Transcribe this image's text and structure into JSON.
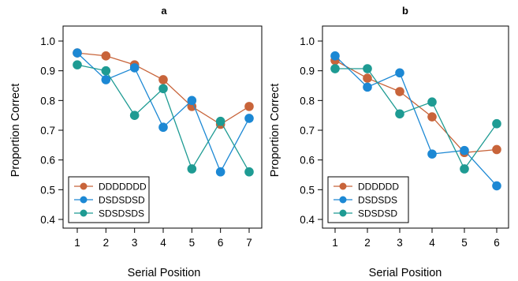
{
  "chart_data": [
    {
      "type": "line",
      "title": "a",
      "xlabel": "Serial Position",
      "ylabel": "Proportion Correct",
      "x": [
        1,
        2,
        3,
        4,
        5,
        6,
        7
      ],
      "xticks": [
        "1",
        "2",
        "3",
        "4",
        "5",
        "6",
        "7"
      ],
      "yticks": [
        "0.4",
        "0.5",
        "0.6",
        "0.7",
        "0.8",
        "0.9",
        "1.0"
      ],
      "xlim": [
        1,
        7
      ],
      "ylim": [
        0.4,
        1.0
      ],
      "grid": false,
      "legend_position": "bottom-left",
      "series": [
        {
          "name": "DDDDDDD",
          "color": "#c8643a",
          "values": [
            0.96,
            0.95,
            0.92,
            0.87,
            0.78,
            0.72,
            0.78
          ]
        },
        {
          "name": "DSDSDSD",
          "color": "#1c88d4",
          "values": [
            0.96,
            0.87,
            0.91,
            0.71,
            0.8,
            0.56,
            0.74
          ]
        },
        {
          "name": "SDSDSDS",
          "color": "#1e9b93",
          "values": [
            0.92,
            0.9,
            0.75,
            0.84,
            0.57,
            0.73,
            0.56
          ]
        }
      ]
    },
    {
      "type": "line",
      "title": "b",
      "xlabel": "Serial Position",
      "ylabel": "Proportion Correct",
      "x": [
        1,
        2,
        3,
        4,
        5,
        6
      ],
      "xticks": [
        "1",
        "2",
        "3",
        "4",
        "5",
        "6"
      ],
      "yticks": [
        "0.4",
        "0.5",
        "0.6",
        "0.7",
        "0.8",
        "0.9",
        "1.0"
      ],
      "xlim": [
        1,
        6
      ],
      "ylim": [
        0.4,
        1.0
      ],
      "grid": false,
      "legend_position": "bottom-left",
      "series": [
        {
          "name": "DDDDDD",
          "color": "#c8643a",
          "values": [
            0.935,
            0.875,
            0.83,
            0.745,
            0.625,
            0.635
          ]
        },
        {
          "name": "DSDSDS",
          "color": "#1c88d4",
          "values": [
            0.95,
            0.845,
            0.893,
            0.62,
            0.632,
            0.513
          ]
        },
        {
          "name": "SDSDSD",
          "color": "#1e9b93",
          "values": [
            0.907,
            0.907,
            0.755,
            0.795,
            0.57,
            0.722
          ]
        }
      ]
    }
  ]
}
